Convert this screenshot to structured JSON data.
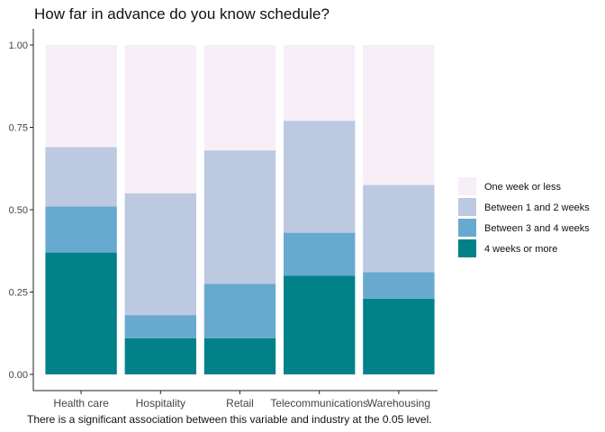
{
  "chart_data": {
    "type": "bar",
    "stacked": true,
    "title": "How far in advance do you know schedule?",
    "caption": "There is a significant association between this variable and industry at the 0.05 level.",
    "xlabel": "",
    "ylabel": "",
    "ylim": [
      0,
      1
    ],
    "yticks": [
      "0.00",
      "0.25",
      "0.50",
      "0.75",
      "1.00"
    ],
    "ytick_values": [
      0,
      0.25,
      0.5,
      0.75,
      1
    ],
    "grid": false,
    "legend_position": "right",
    "categories": [
      "Health care",
      "Hospitality",
      "Retail",
      "Telecommunications",
      "Warehousing"
    ],
    "series": [
      {
        "name": "4 weeks or more",
        "color": "#028189",
        "values": [
          0.37,
          0.11,
          0.11,
          0.3,
          0.23
        ]
      },
      {
        "name": "Between 3 and 4 weeks",
        "color": "#67a9cf",
        "values": [
          0.14,
          0.07,
          0.165,
          0.13,
          0.08
        ]
      },
      {
        "name": "Between 1 and 2 weeks",
        "color": "#bdc9e1",
        "values": [
          0.18,
          0.37,
          0.405,
          0.34,
          0.265
        ]
      },
      {
        "name": "One week or less",
        "color": "#f6eff7",
        "values": [
          0.31,
          0.45,
          0.32,
          0.23,
          0.425
        ]
      }
    ],
    "legend_order": [
      "One week or less",
      "Between 1 and 2 weeks",
      "Between 3 and 4 weeks",
      "4 weeks or more"
    ]
  }
}
